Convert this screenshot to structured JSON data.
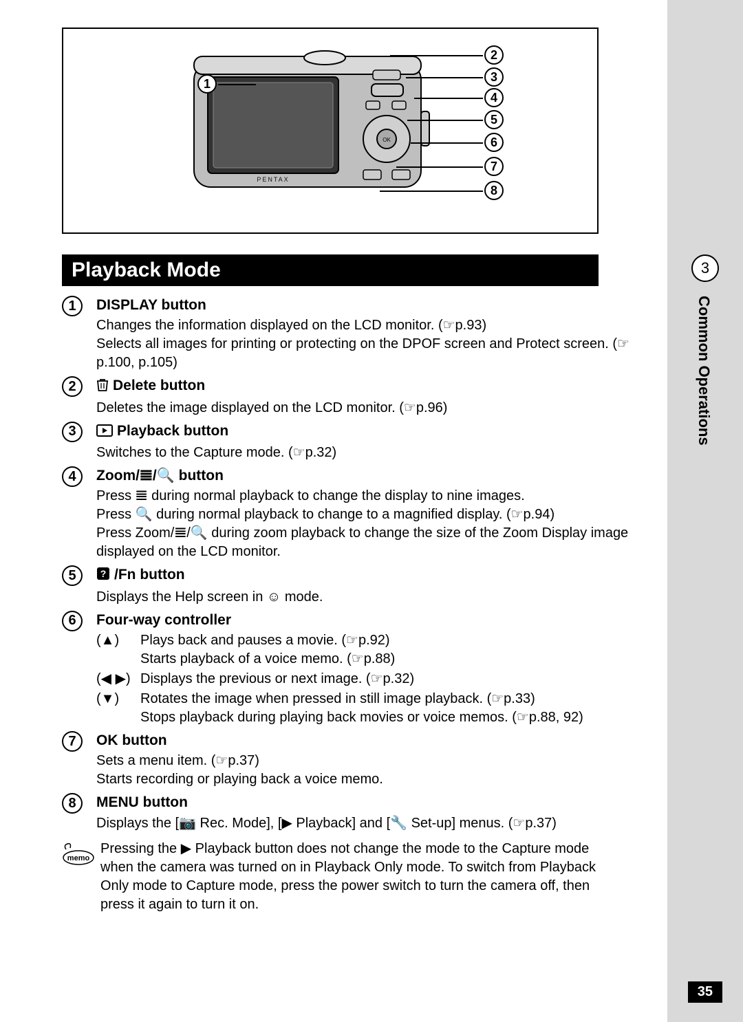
{
  "section_header": "Playback Mode",
  "side": {
    "chapter_num": "3",
    "chapter_title": "Common Operations"
  },
  "page_number": "35",
  "diagram": {
    "callouts": [
      "1",
      "2",
      "3",
      "4",
      "5",
      "6",
      "7",
      "8"
    ]
  },
  "items": [
    {
      "num": "1",
      "title_prefix_icon": null,
      "title": "DISPLAY button",
      "lines": [
        "Changes the information displayed on the LCD monitor. (☞p.93)",
        "Selects all images for printing or protecting on the DPOF screen and Protect screen. (☞p.100, p.105)"
      ]
    },
    {
      "num": "2",
      "title_prefix_icon": "trash",
      "title": "Delete button",
      "lines": [
        "Deletes the image displayed on the LCD monitor. (☞p.96)"
      ]
    },
    {
      "num": "3",
      "title_prefix_icon": "playback",
      "title": "Playback button",
      "lines": [
        "Switches to the Capture mode. (☞p.32)"
      ]
    },
    {
      "num": "4",
      "title_prefix_icon": null,
      "title": "Zoom/𝌆/🔍 button",
      "lines": [
        "Press 𝌆 during normal playback to change the display to nine images.",
        "Press 🔍 during normal playback to change to a magnified display. (☞p.94)",
        "Press Zoom/𝌆/🔍 during zoom playback to change the size of the Zoom Display image displayed on the LCD monitor."
      ]
    },
    {
      "num": "5",
      "title_prefix_icon": "help",
      "title": "/Fn button",
      "lines": [
        "Displays the Help screen in ☺ mode."
      ]
    },
    {
      "num": "6",
      "title_prefix_icon": null,
      "title": "Four-way controller",
      "sub": [
        {
          "sym": "(▲)",
          "text": "Plays back and pauses a movie. (☞p.92)\nStarts playback of a voice memo. (☞p.88)"
        },
        {
          "sym": "(◀ ▶)",
          "text": "Displays the previous or next image. (☞p.32)"
        },
        {
          "sym": "(▼)",
          "text": "Rotates the image when pressed in still image playback. (☞p.33)\nStops playback during playing back movies or voice memos. (☞p.88, 92)"
        }
      ]
    },
    {
      "num": "7",
      "title_prefix_icon": null,
      "title": "OK button",
      "lines": [
        "Sets a menu item. (☞p.37)",
        "Starts recording or playing back a voice memo."
      ]
    },
    {
      "num": "8",
      "title_prefix_icon": null,
      "title": "MENU button",
      "lines": [
        "Displays the [📷 Rec. Mode], [▶ Playback] and [🔧 Set-up] menus. (☞p.37)"
      ]
    }
  ],
  "memo": "Pressing the ▶ Playback button does not change the mode to the Capture mode when the camera was turned on in Playback Only mode. To switch from Playback Only mode to Capture mode, press the power switch to turn the camera off, then press it again to turn it on."
}
